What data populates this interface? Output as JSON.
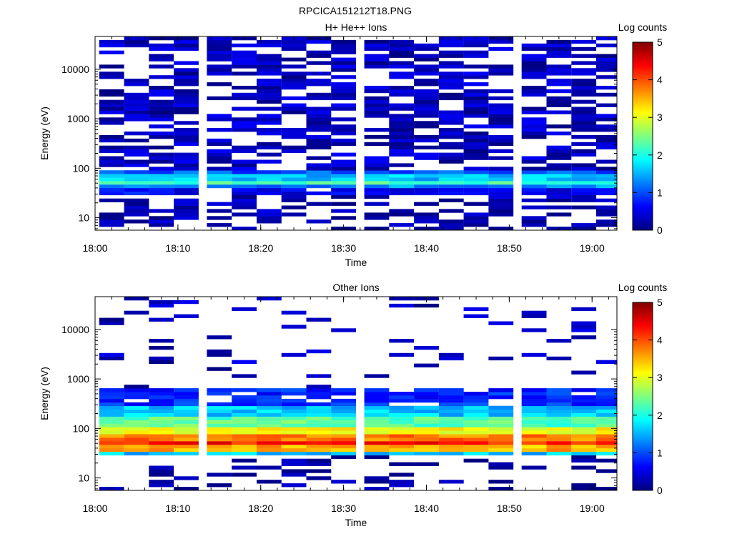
{
  "figure_title": "RPCICA151212T18.PNG",
  "colorbar": {
    "label": "Log counts",
    "ticks": [
      "0",
      "1",
      "2",
      "3",
      "4",
      "5"
    ],
    "range": [
      0,
      5
    ],
    "colormap": "jet"
  },
  "chart_data": [
    {
      "type": "heatmap",
      "title": "H+ He++ Ions",
      "xlabel": "Time",
      "ylabel": "Energy (eV)",
      "x_ticks": [
        "18:00",
        "18:10",
        "18:20",
        "18:30",
        "18:40",
        "18:50",
        "19:00"
      ],
      "y_ticks": [
        "10",
        "100",
        "1000",
        "10000"
      ],
      "y_scale": "log",
      "y_range": [
        5.6,
        46000
      ],
      "x_range": [
        "18:00",
        "19:03"
      ],
      "time_bins": [
        "18:02",
        "18:05",
        "18:08",
        "18:11",
        "18:15",
        "18:18",
        "18:21",
        "18:24",
        "18:27",
        "18:30",
        "18:34",
        "18:37",
        "18:40",
        "18:43",
        "18:46",
        "18:49",
        "18:53",
        "18:56",
        "18:59",
        "19:02"
      ],
      "profile": [
        {
          "energy_eV_low": 5.6,
          "energy_eV_high": 30,
          "log_counts": 0.2,
          "coverage": 0.45
        },
        {
          "energy_eV_low": 30,
          "energy_eV_high": 38,
          "log_counts": 0.6,
          "coverage": 0.9
        },
        {
          "energy_eV_low": 38,
          "energy_eV_high": 48,
          "log_counts": 1.3,
          "coverage": 1.0
        },
        {
          "energy_eV_low": 48,
          "energy_eV_high": 60,
          "log_counts": 2.3,
          "coverage": 1.0
        },
        {
          "energy_eV_low": 60,
          "energy_eV_high": 75,
          "log_counts": 1.6,
          "coverage": 1.0
        },
        {
          "energy_eV_low": 75,
          "energy_eV_high": 95,
          "log_counts": 1.0,
          "coverage": 1.0
        },
        {
          "energy_eV_low": 95,
          "energy_eV_high": 46000,
          "log_counts": 0.3,
          "coverage": 0.6
        }
      ]
    },
    {
      "type": "heatmap",
      "title": "Other Ions",
      "xlabel": "Time",
      "ylabel": "Energy (eV)",
      "x_ticks": [
        "18:00",
        "18:10",
        "18:20",
        "18:30",
        "18:40",
        "18:50",
        "19:00"
      ],
      "y_ticks": [
        "10",
        "100",
        "1000",
        "10000"
      ],
      "y_scale": "log",
      "y_range": [
        5.6,
        46000
      ],
      "x_range": [
        "18:00",
        "19:03"
      ],
      "time_bins": [
        "18:02",
        "18:05",
        "18:08",
        "18:11",
        "18:15",
        "18:18",
        "18:21",
        "18:24",
        "18:27",
        "18:30",
        "18:34",
        "18:37",
        "18:40",
        "18:43",
        "18:46",
        "18:49",
        "18:53",
        "18:56",
        "18:59",
        "19:02"
      ],
      "profile": [
        {
          "energy_eV_low": 5.6,
          "energy_eV_high": 30,
          "log_counts": 0.1,
          "coverage": 0.25
        },
        {
          "energy_eV_low": 30,
          "energy_eV_high": 36,
          "log_counts": 1.6,
          "coverage": 1.0
        },
        {
          "energy_eV_low": 36,
          "energy_eV_high": 45,
          "log_counts": 3.5,
          "coverage": 1.0
        },
        {
          "energy_eV_low": 45,
          "energy_eV_high": 60,
          "log_counts": 4.3,
          "coverage": 1.0
        },
        {
          "energy_eV_low": 60,
          "energy_eV_high": 80,
          "log_counts": 3.8,
          "coverage": 1.0
        },
        {
          "energy_eV_low": 80,
          "energy_eV_high": 110,
          "log_counts": 3.1,
          "coverage": 1.0
        },
        {
          "energy_eV_low": 110,
          "energy_eV_high": 180,
          "log_counts": 2.3,
          "coverage": 1.0
        },
        {
          "energy_eV_low": 180,
          "energy_eV_high": 300,
          "log_counts": 1.6,
          "coverage": 1.0
        },
        {
          "energy_eV_low": 300,
          "energy_eV_high": 600,
          "log_counts": 0.8,
          "coverage": 0.85
        },
        {
          "energy_eV_low": 600,
          "energy_eV_high": 46000,
          "log_counts": 0.3,
          "coverage": 0.12
        }
      ]
    }
  ]
}
